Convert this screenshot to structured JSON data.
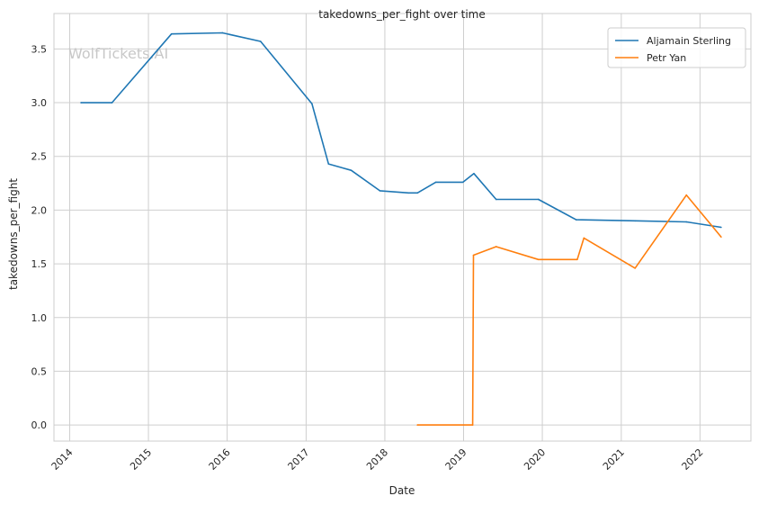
{
  "chart_data": {
    "type": "line",
    "title": "takedowns_per_fight over time",
    "xlabel": "Date",
    "ylabel": "takedowns_per_fight",
    "watermark": "WolfTickets.AI",
    "x_ticks": [
      "2014",
      "2015",
      "2016",
      "2017",
      "2018",
      "2019",
      "2020",
      "2021",
      "2022"
    ],
    "y_ticks": [
      "0.0",
      "0.5",
      "1.0",
      "1.5",
      "2.0",
      "2.5",
      "3.0",
      "3.5"
    ],
    "ylim": [
      -0.15,
      3.83
    ],
    "xlim": [
      "2013-10-20",
      "2022-08-25"
    ],
    "grid": true,
    "legend_position": "top-right",
    "series": [
      {
        "name": "Aljamain Sterling",
        "color": "#1f77b4",
        "points": [
          [
            "2014-02-22",
            3.0
          ],
          [
            "2014-07-16",
            3.0
          ],
          [
            "2015-04-18",
            3.64
          ],
          [
            "2015-12-10",
            3.65
          ],
          [
            "2016-06-04",
            3.57
          ],
          [
            "2017-01-28",
            2.99
          ],
          [
            "2017-04-15",
            2.43
          ],
          [
            "2017-07-29",
            2.37
          ],
          [
            "2017-12-09",
            2.18
          ],
          [
            "2018-04-21",
            2.16
          ],
          [
            "2018-06-01",
            2.16
          ],
          [
            "2018-08-25",
            2.26
          ],
          [
            "2018-12-29",
            2.26
          ],
          [
            "2019-02-18",
            2.34
          ],
          [
            "2019-06-01",
            2.1
          ],
          [
            "2019-12-14",
            2.1
          ],
          [
            "2020-06-06",
            1.91
          ],
          [
            "2021-03-06",
            1.9
          ],
          [
            "2021-10-30",
            1.89
          ],
          [
            "2022-04-09",
            1.84
          ]
        ]
      },
      {
        "name": "Petr Yan",
        "color": "#ff7f0e",
        "points": [
          [
            "2018-06-01",
            0.0
          ],
          [
            "2019-02-12",
            0.0
          ],
          [
            "2019-02-16",
            1.58
          ],
          [
            "2019-06-01",
            1.66
          ],
          [
            "2019-12-14",
            1.54
          ],
          [
            "2020-06-11",
            1.54
          ],
          [
            "2020-07-12",
            1.74
          ],
          [
            "2021-03-06",
            1.46
          ],
          [
            "2021-10-30",
            2.14
          ],
          [
            "2022-04-09",
            1.75
          ]
        ]
      }
    ]
  }
}
